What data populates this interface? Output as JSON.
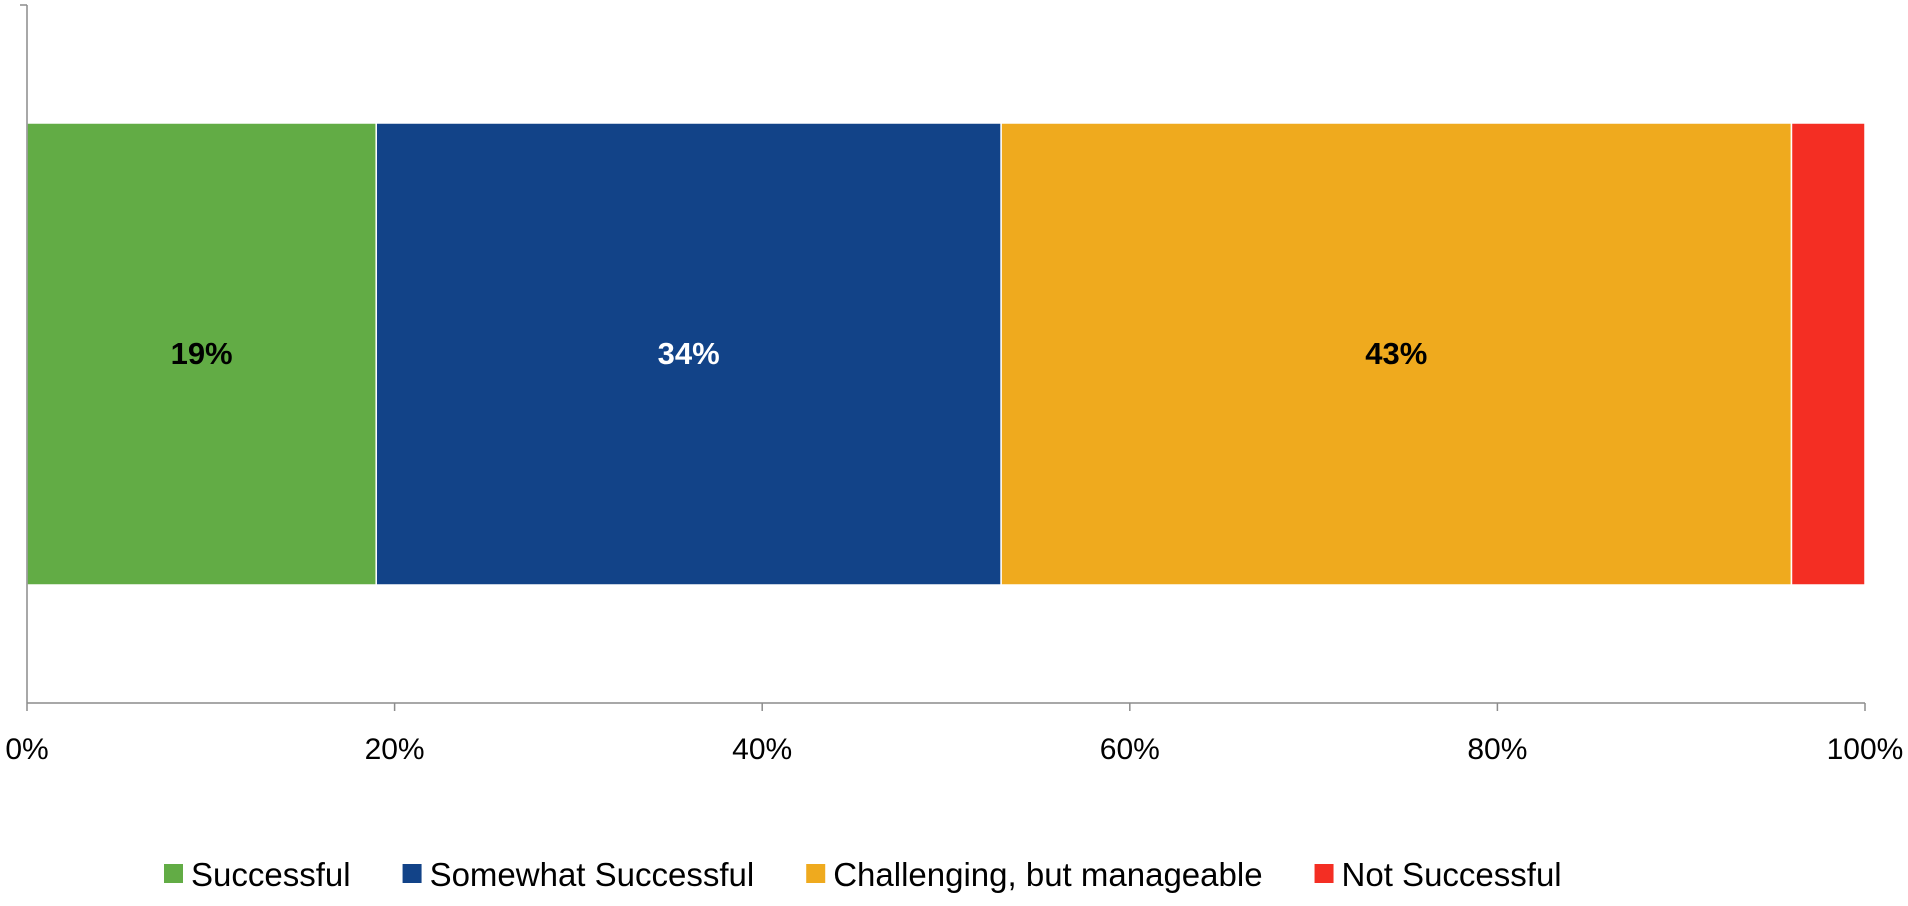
{
  "chart_data": {
    "type": "bar",
    "orientation": "horizontal",
    "stacked": true,
    "title": "",
    "xlabel": "",
    "ylabel": "",
    "xlim": [
      0,
      100
    ],
    "x_ticks": [
      "0%",
      "20%",
      "40%",
      "60%",
      "80%",
      "100%"
    ],
    "x_tick_values": [
      0,
      20,
      40,
      60,
      80,
      100
    ],
    "grid": false,
    "legend_position": "bottom",
    "categories": [
      ""
    ],
    "series": [
      {
        "name": "Successful",
        "values": [
          19
        ],
        "label": "19%",
        "color": "#62AC45",
        "label_color": "#000000"
      },
      {
        "name": "Somewhat Successful",
        "values": [
          34
        ],
        "label": "34%",
        "color": "#124388",
        "label_color": "#FFFFFF"
      },
      {
        "name": "Challenging, but manageable",
        "values": [
          43
        ],
        "label": "43%",
        "color": "#EFAA1E",
        "label_color": "#000000"
      },
      {
        "name": "Not Successful",
        "values": [
          4
        ],
        "label": "",
        "color": "#F42E23",
        "label_color": "#000000"
      }
    ]
  }
}
